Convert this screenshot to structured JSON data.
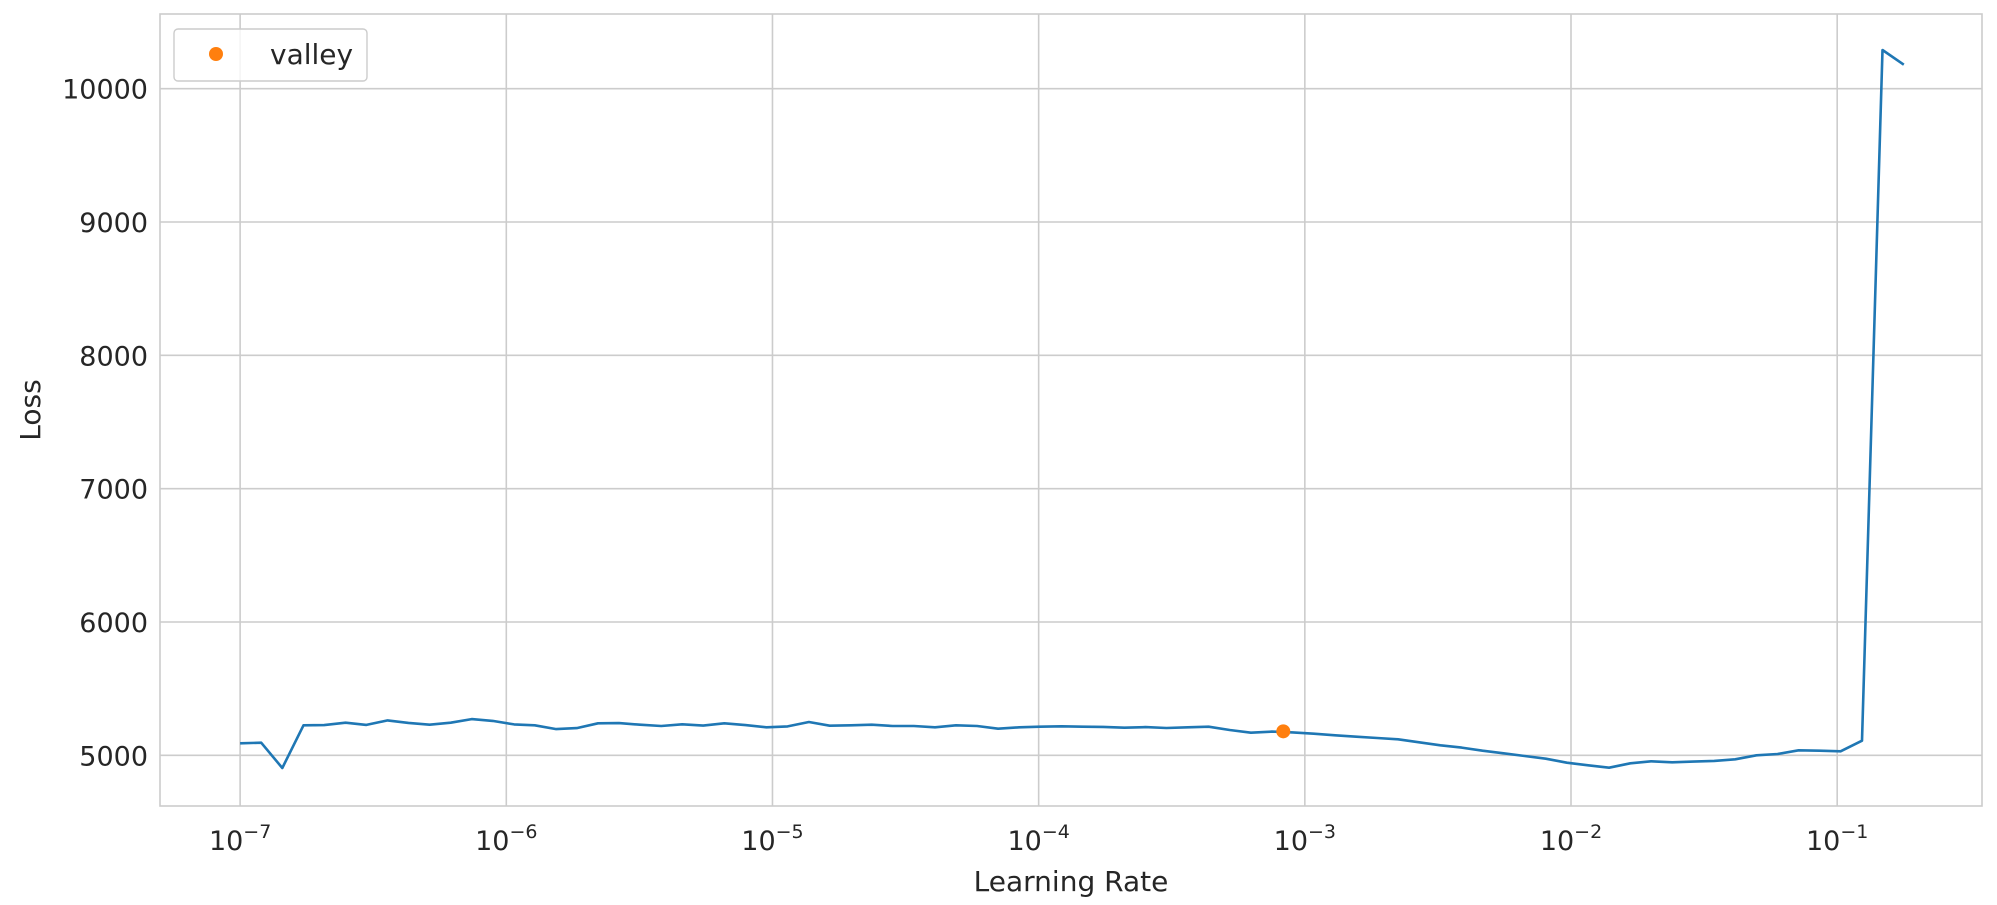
{
  "chart_data": {
    "type": "line",
    "xscale": "log",
    "xlabel": "Learning Rate",
    "ylabel": "Loss",
    "xlim": [
      5e-08,
      0.35
    ],
    "ylim": [
      4620,
      10560
    ],
    "grid": true,
    "legend": {
      "position": "top-left",
      "entries": [
        "valley"
      ]
    },
    "colors": {
      "line": "#1f77b4",
      "valley": "#ff7f0e",
      "grid": "#cccccc",
      "text": "#262626"
    },
    "x_ticks": [
      {
        "value": 1e-07,
        "base": "10",
        "exp": "−7"
      },
      {
        "value": 1e-06,
        "base": "10",
        "exp": "−6"
      },
      {
        "value": 1e-05,
        "base": "10",
        "exp": "−5"
      },
      {
        "value": 0.0001,
        "base": "10",
        "exp": "−4"
      },
      {
        "value": 0.001,
        "base": "10",
        "exp": "−3"
      },
      {
        "value": 0.01,
        "base": "10",
        "exp": "−2"
      },
      {
        "value": 0.1,
        "base": "10",
        "exp": "−1"
      }
    ],
    "y_ticks": [
      {
        "value": 5000,
        "label": "5000"
      },
      {
        "value": 6000,
        "label": "6000"
      },
      {
        "value": 7000,
        "label": "7000"
      },
      {
        "value": 8000,
        "label": "8000"
      },
      {
        "value": 9000,
        "label": "9000"
      },
      {
        "value": 10000,
        "label": "10000"
      }
    ],
    "series": [
      {
        "x": [
          1e-07,
          1.2e-07,
          1.44e-07,
          1.73e-07,
          2.07e-07,
          2.49e-07,
          2.98e-07,
          3.58e-07,
          4.29e-07,
          5.15e-07,
          6.18e-07,
          7.41e-07,
          8.89e-07,
          1.07e-06,
          1.28e-06,
          1.54e-06,
          1.84e-06,
          2.21e-06,
          2.65e-06,
          3.18e-06,
          3.82e-06,
          4.58e-06,
          5.49e-06,
          6.59e-06,
          7.91e-06,
          9.49e-06,
          1.14e-05,
          1.37e-05,
          1.64e-05,
          1.97e-05,
          2.36e-05,
          2.83e-05,
          3.4e-05,
          4.08e-05,
          4.89e-05,
          5.87e-05,
          7.04e-05,
          8.45e-05,
          0.000101,
          0.000122,
          0.000146,
          0.000175,
          0.00021,
          0.000252,
          0.000302,
          0.000363,
          0.000435,
          0.000522,
          0.000627,
          0.000752,
          0.000902,
          0.00108,
          0.0013,
          0.00156,
          0.00187,
          0.00224,
          0.00269,
          0.00323,
          0.00388,
          0.00465,
          0.00558,
          0.0067,
          0.00804,
          0.00964,
          0.0116,
          0.0139,
          0.0167,
          0.02,
          0.024,
          0.0288,
          0.0345,
          0.0414,
          0.0497,
          0.0597,
          0.0716,
          0.0859,
          0.103,
          0.124,
          0.148,
          0.178
        ],
        "y": [
          5090,
          5095,
          4905,
          5225,
          5227,
          5245,
          5228,
          5262,
          5243,
          5230,
          5245,
          5272,
          5258,
          5232,
          5225,
          5197,
          5204,
          5240,
          5242,
          5230,
          5220,
          5233,
          5223,
          5240,
          5227,
          5210,
          5217,
          5250,
          5222,
          5225,
          5230,
          5220,
          5220,
          5210,
          5225,
          5220,
          5200,
          5210,
          5215,
          5218,
          5215,
          5213,
          5207,
          5212,
          5205,
          5210,
          5215,
          5190,
          5170,
          5178,
          5172,
          5162,
          5150,
          5140,
          5130,
          5120,
          5098,
          5075,
          5058,
          5035,
          5015,
          4995,
          4975,
          4945,
          4925,
          4907,
          4940,
          4955,
          4948,
          4953,
          4958,
          4970,
          5000,
          5010,
          5038,
          5035,
          5030,
          5110,
          10290,
          10180
        ]
      }
    ],
    "valley": {
      "x": 0.00083,
      "y": 5180
    }
  }
}
